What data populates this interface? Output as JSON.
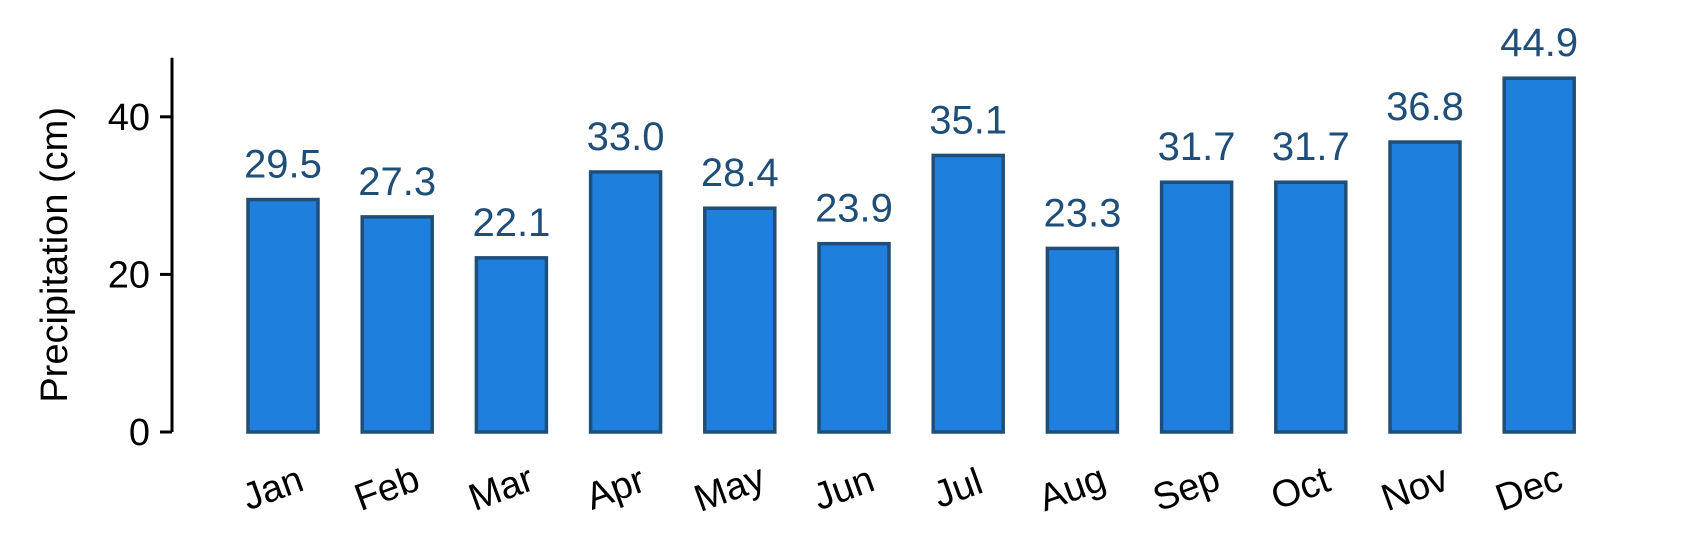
{
  "chart_data": {
    "type": "bar",
    "categories": [
      "Jan",
      "Feb",
      "Mar",
      "Apr",
      "May",
      "Jun",
      "Jul",
      "Aug",
      "Sep",
      "Oct",
      "Nov",
      "Dec"
    ],
    "values": [
      29.5,
      27.3,
      22.1,
      33.0,
      28.4,
      23.9,
      35.1,
      23.3,
      31.7,
      31.7,
      36.8,
      44.9
    ],
    "data_labels": [
      "29.5",
      "27.3",
      "22.1",
      "33.0",
      "28.4",
      "23.9",
      "35.1",
      "23.3",
      "31.7",
      "31.7",
      "36.8",
      "44.9"
    ],
    "title": "",
    "xlabel": "",
    "ylabel": "Precipitation (cm)",
    "ylim": [
      0,
      47.5
    ],
    "yticks": [
      0,
      20,
      40
    ],
    "ytick_labels": [
      "0",
      "20",
      "40"
    ],
    "grid": false,
    "legend": "none",
    "colors": {
      "bar_fill": "#1f7fdc",
      "bar_edge": "#1f4e79",
      "data_label": "#1f4e79",
      "axis": "#000000"
    }
  }
}
